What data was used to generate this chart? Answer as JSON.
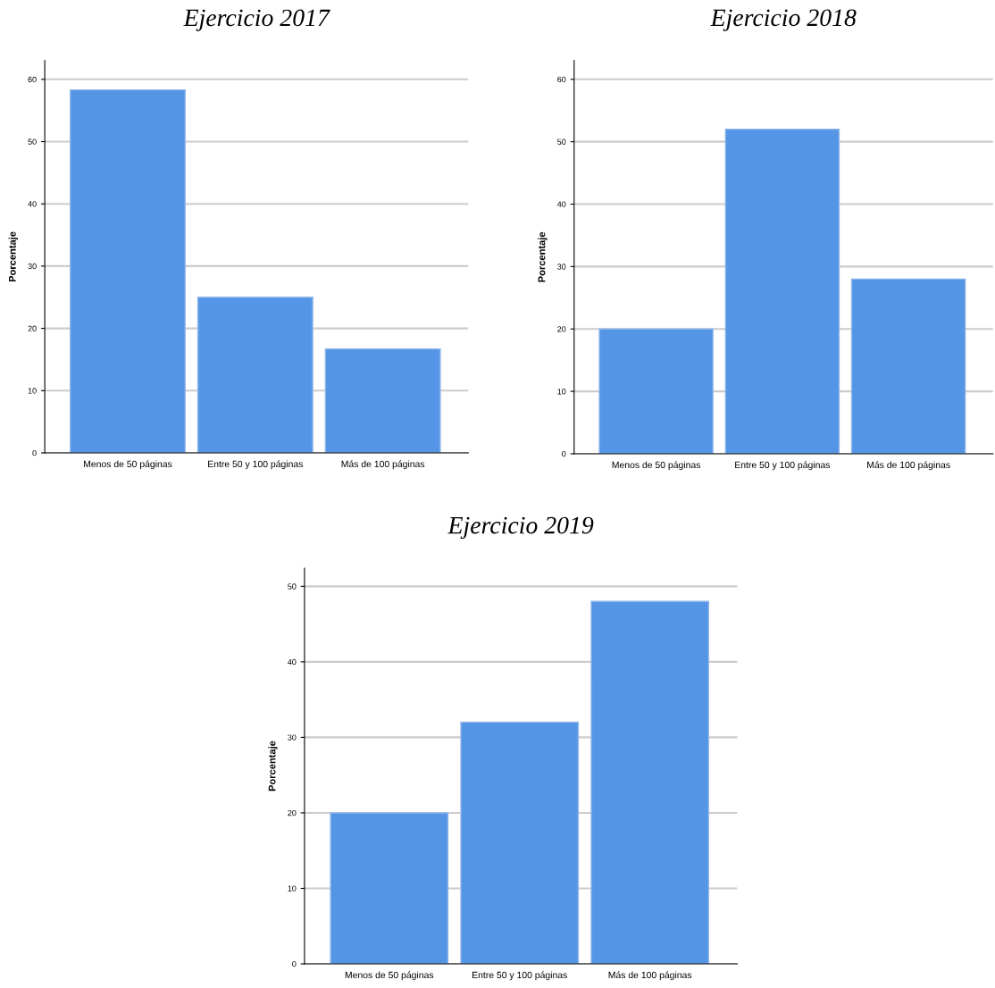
{
  "chart_data": [
    {
      "type": "bar",
      "title": "Ejercicio 2017",
      "ylabel": "Porcentaje",
      "categories": [
        "Menos de 50 páginas",
        "Entre 50 y 100 páginas",
        "Más de 100 páginas"
      ],
      "values": [
        58.3,
        25,
        16.7
      ],
      "color": "#5595e5",
      "ylim": [
        0,
        63
      ],
      "yticks": [
        0,
        10,
        20,
        30,
        40,
        50,
        60
      ],
      "grid": "y"
    },
    {
      "type": "bar",
      "title": "Ejercicio 2018",
      "ylabel": "Porcentaje",
      "categories": [
        "Menos de 50 páginas",
        "Entre 50 y 100 páginas",
        "Más de 100 páginas"
      ],
      "values": [
        20,
        52,
        28
      ],
      "color": "#5595e5",
      "ylim": [
        0,
        63
      ],
      "yticks": [
        0,
        10,
        20,
        30,
        40,
        50,
        60
      ],
      "grid": "y"
    },
    {
      "type": "bar",
      "title": "Ejercicio 2019",
      "ylabel": "Porcentaje",
      "categories": [
        "Menos de 50 páginas",
        "Entre 50 y 100 páginas",
        "Más de 100 páginas"
      ],
      "values": [
        20,
        32,
        48
      ],
      "color": "#5595e5",
      "ylim": [
        0,
        52.4
      ],
      "yticks": [
        0,
        10,
        20,
        30,
        40,
        50
      ],
      "grid": "y"
    }
  ]
}
